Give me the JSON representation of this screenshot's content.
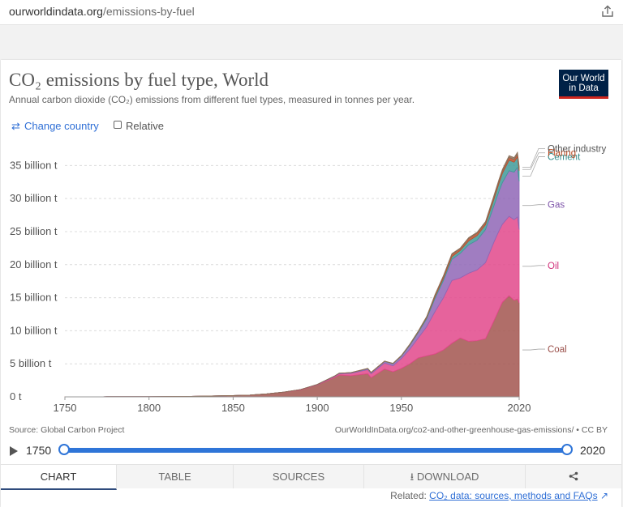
{
  "browser": {
    "url_domain": "ourworldindata.org",
    "url_path": "/emissions-by-fuel"
  },
  "header": {
    "title": "CO₂ emissions by fuel type, World",
    "subtitle": "Annual carbon dioxide (CO₂) emissions from different fuel types, measured in tonnes per year.",
    "logo_line1": "Our World",
    "logo_line2": "in Data"
  },
  "controls": {
    "change_country": "Change country",
    "relative": "Relative"
  },
  "footer": {
    "source": "Source: Global Carbon Project",
    "license": "OurWorldInData.org/co2-and-other-greenhouse-gas-emissions/ • CC BY"
  },
  "timeline": {
    "start": "1750",
    "end": "2020"
  },
  "tabs": {
    "chart": "CHART",
    "table": "TABLE",
    "sources": "SOURCES",
    "download": "DOWNLOAD"
  },
  "related": {
    "prefix": "Related:",
    "link": "CO₂ data: sources, methods and FAQs"
  },
  "colors": {
    "coal": "#a2554f",
    "oil": "#e2488b",
    "gas": "#8f66b6",
    "cement": "#3f9a99",
    "flaring": "#c04e2a",
    "other": "#8a6f59",
    "accent": "#2f75d8"
  },
  "chart_data": {
    "type": "area",
    "stacked": true,
    "xlim": [
      1750,
      2020
    ],
    "ylim": [
      0,
      37
    ],
    "yticks": [
      0,
      5,
      10,
      15,
      20,
      25,
      30,
      35
    ],
    "ytick_labels": [
      "0 t",
      "5 billion t",
      "10 billion t",
      "15 billion t",
      "20 billion t",
      "25 billion t",
      "30 billion t",
      "35 billion t"
    ],
    "xticks": [
      1750,
      1800,
      1850,
      1900,
      1950,
      2020
    ],
    "xtick_labels": [
      "1750",
      "1800",
      "1850",
      "1900",
      "1950",
      "2020"
    ],
    "grid": true,
    "legend": "right, inline labels",
    "x": [
      1750,
      1775,
      1800,
      1825,
      1850,
      1860,
      1870,
      1880,
      1890,
      1900,
      1910,
      1913,
      1920,
      1930,
      1932,
      1940,
      1945,
      1950,
      1955,
      1960,
      1965,
      1970,
      1975,
      1980,
      1985,
      1990,
      1995,
      2000,
      2005,
      2008,
      2010,
      2014,
      2017,
      2019,
      2020
    ],
    "series": [
      {
        "name": "Coal",
        "values": [
          0.01,
          0.02,
          0.03,
          0.07,
          0.19,
          0.28,
          0.45,
          0.7,
          1.05,
          1.8,
          2.9,
          3.3,
          3.2,
          3.5,
          2.9,
          4.2,
          3.8,
          4.3,
          5.0,
          5.9,
          6.2,
          6.5,
          7.1,
          8.1,
          8.9,
          8.4,
          8.5,
          8.8,
          11.5,
          13.2,
          14.3,
          15.3,
          14.6,
          14.8,
          14.2
        ]
      },
      {
        "name": "Oil",
        "values": [
          0,
          0,
          0,
          0,
          0,
          0,
          0.002,
          0.02,
          0.05,
          0.05,
          0.15,
          0.2,
          0.35,
          0.6,
          0.6,
          0.9,
          0.9,
          1.5,
          2.2,
          3.0,
          4.4,
          6.4,
          7.9,
          9.5,
          9.1,
          10.3,
          10.7,
          11.5,
          11.9,
          11.9,
          11.8,
          12.0,
          12.2,
          12.4,
          11.1
        ]
      },
      {
        "name": "Gas",
        "values": [
          0,
          0,
          0,
          0,
          0,
          0,
          0,
          0,
          0.002,
          0.02,
          0.05,
          0.06,
          0.1,
          0.15,
          0.15,
          0.25,
          0.3,
          0.35,
          0.6,
          0.8,
          1.2,
          2.0,
          2.6,
          3.2,
          3.7,
          4.3,
          4.5,
          5.0,
          5.5,
          6.0,
          6.3,
          6.9,
          7.2,
          7.5,
          7.3
        ]
      },
      {
        "name": "Cement",
        "values": [
          0,
          0,
          0,
          0,
          0,
          0,
          0,
          0,
          0,
          0.01,
          0.02,
          0.02,
          0.02,
          0.04,
          0.04,
          0.04,
          0.04,
          0.05,
          0.1,
          0.15,
          0.2,
          0.3,
          0.35,
          0.4,
          0.45,
          0.6,
          0.7,
          0.75,
          1.0,
          1.2,
          1.4,
          1.6,
          1.5,
          1.6,
          1.6
        ]
      },
      {
        "name": "Flaring",
        "values": [
          0,
          0,
          0,
          0,
          0,
          0,
          0,
          0,
          0,
          0,
          0,
          0,
          0.01,
          0.02,
          0.02,
          0.02,
          0.02,
          0.04,
          0.05,
          0.06,
          0.1,
          0.2,
          0.3,
          0.35,
          0.25,
          0.35,
          0.35,
          0.3,
          0.35,
          0.35,
          0.35,
          0.4,
          0.4,
          0.4,
          0.4
        ]
      },
      {
        "name": "Other industry",
        "values": [
          0,
          0,
          0,
          0,
          0,
          0,
          0,
          0,
          0,
          0,
          0,
          0,
          0,
          0,
          0,
          0,
          0.02,
          0.03,
          0.03,
          0.04,
          0.05,
          0.1,
          0.1,
          0.12,
          0.12,
          0.15,
          0.15,
          0.18,
          0.22,
          0.25,
          0.25,
          0.3,
          0.3,
          0.3,
          0.3
        ]
      }
    ]
  }
}
